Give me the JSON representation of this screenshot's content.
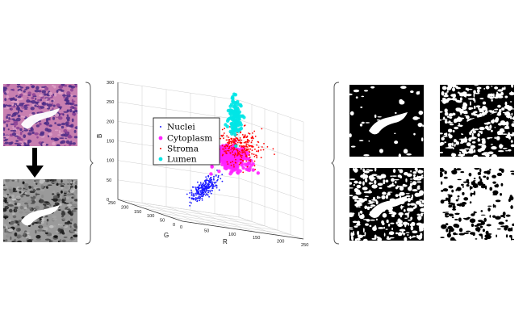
{
  "chart_data": {
    "type": "scatter",
    "title": "",
    "axes": {
      "x": {
        "label": "R",
        "ticks": [
          "0",
          "50",
          "100",
          "150",
          "200",
          "250"
        ],
        "range": [
          0,
          250
        ]
      },
      "y": {
        "label": "G",
        "ticks": [
          "0",
          "50",
          "100",
          "150",
          "200",
          "250"
        ],
        "range": [
          0,
          250
        ]
      },
      "z": {
        "label": "B",
        "ticks": [
          "0",
          "50",
          "100",
          "150",
          "200",
          "250",
          "300"
        ],
        "range": [
          0,
          300
        ]
      }
    },
    "grid": true,
    "legend_position": "top-left",
    "series": [
      {
        "name": "Nuclei",
        "color": "#1a1aff",
        "marker": "dot",
        "center": [
          75,
          55,
          85
        ],
        "spread": [
          18,
          14,
          16
        ]
      },
      {
        "name": "Cytoplasm",
        "color": "#ff22ff",
        "marker": "circle",
        "center": [
          150,
          95,
          170
        ],
        "spread": [
          18,
          12,
          16
        ]
      },
      {
        "name": "Stroma",
        "color": "#ff0000",
        "marker": "dot",
        "center": [
          175,
          110,
          200
        ],
        "spread": [
          20,
          14,
          22
        ]
      },
      {
        "name": "Lumen",
        "color": "#00e5e5",
        "marker": "circle",
        "center": [
          215,
          200,
          265
        ],
        "spread": [
          14,
          14,
          18
        ]
      }
    ]
  },
  "images": {
    "he_patch": "H&E stained tissue patch",
    "gray_patch": "grayscale converted tissue patch",
    "masks": [
      "lumen mask",
      "stroma mask",
      "cytoplasm mask",
      "nuclei mask"
    ]
  },
  "colors": {
    "arrow": "#000000",
    "bracket": "#444444"
  }
}
